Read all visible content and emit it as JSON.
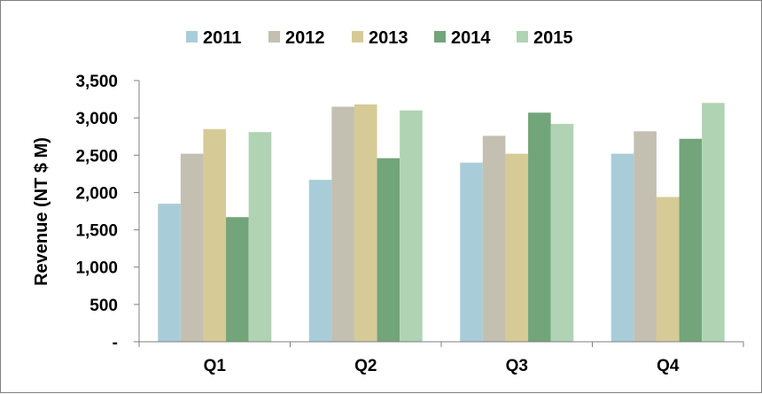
{
  "chart_data": {
    "type": "bar",
    "categories": [
      "Q1",
      "Q2",
      "Q3",
      "Q4"
    ],
    "series": [
      {
        "name": "2011",
        "color": "#a9cdd8",
        "values": [
          1850,
          2170,
          2400,
          2520
        ]
      },
      {
        "name": "2012",
        "color": "#c3c0b1",
        "values": [
          2520,
          3150,
          2760,
          2820
        ]
      },
      {
        "name": "2013",
        "color": "#d6cb96",
        "values": [
          2850,
          3180,
          2520,
          1940
        ]
      },
      {
        "name": "2014",
        "color": "#72a57a",
        "values": [
          1670,
          2460,
          3070,
          2720
        ]
      },
      {
        "name": "2015",
        "color": "#b0d3b3",
        "values": [
          2810,
          3100,
          2920,
          3200
        ]
      }
    ],
    "title": "",
    "xlabel": "",
    "ylabel": "Revenue (NT $ M)",
    "ylim": [
      0,
      3500
    ],
    "yticks": [
      0,
      500,
      1000,
      1500,
      2000,
      2500,
      3000,
      3500
    ],
    "ytick_labels": [
      "-",
      "500",
      "1,000",
      "1,500",
      "2,000",
      "2,500",
      "3,000",
      "3,500"
    ],
    "grid": false,
    "legend_position": "top"
  }
}
